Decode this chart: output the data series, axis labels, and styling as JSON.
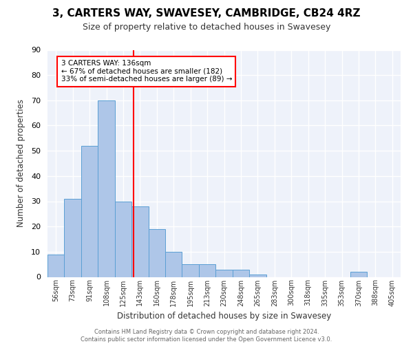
{
  "title": "3, CARTERS WAY, SWAVESEY, CAMBRIDGE, CB24 4RZ",
  "subtitle": "Size of property relative to detached houses in Swavesey",
  "xlabel": "Distribution of detached houses by size in Swavesey",
  "ylabel": "Number of detached properties",
  "bin_labels": [
    "56sqm",
    "73sqm",
    "91sqm",
    "108sqm",
    "125sqm",
    "143sqm",
    "160sqm",
    "178sqm",
    "195sqm",
    "213sqm",
    "230sqm",
    "248sqm",
    "265sqm",
    "283sqm",
    "300sqm",
    "318sqm",
    "335sqm",
    "353sqm",
    "370sqm",
    "388sqm",
    "405sqm"
  ],
  "bar_values": [
    9,
    31,
    52,
    70,
    30,
    28,
    19,
    10,
    5,
    5,
    3,
    3,
    1,
    0,
    0,
    0,
    0,
    0,
    2,
    0,
    0
  ],
  "bar_color": "#aec6e8",
  "bar_edge_color": "#5a9fd4",
  "vline_pos": 4.61,
  "annotation_text": "3 CARTERS WAY: 136sqm\n← 67% of detached houses are smaller (182)\n33% of semi-detached houses are larger (89) →",
  "annotation_box_color": "white",
  "annotation_box_edge_color": "red",
  "vline_color": "red",
  "background_color": "#eef2fa",
  "grid_color": "white",
  "footer_text": "Contains HM Land Registry data © Crown copyright and database right 2024.\nContains public sector information licensed under the Open Government Licence v3.0.",
  "ylim": [
    0,
    90
  ],
  "yticks": [
    0,
    10,
    20,
    30,
    40,
    50,
    60,
    70,
    80,
    90
  ]
}
